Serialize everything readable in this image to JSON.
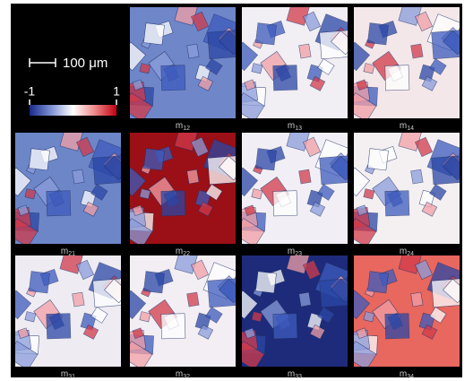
{
  "scale_bar": {
    "label": "100 μm"
  },
  "colorbar": {
    "lim": [
      -1,
      1
    ],
    "ticks": [
      -1,
      1
    ]
  },
  "panels": [
    {
      "symbol": "m",
      "index": "12",
      "color": "#6f86c9"
    },
    {
      "symbol": "m",
      "index": "13",
      "color": "#f1eef4"
    },
    {
      "symbol": "m",
      "index": "14",
      "color": "#f3e7e9"
    },
    {
      "symbol": "m",
      "index": "21",
      "color": "#6d86c8"
    },
    {
      "symbol": "m",
      "index": "22",
      "color": "#9a1016"
    },
    {
      "symbol": "m",
      "index": "23",
      "color": "#f1eff5"
    },
    {
      "symbol": "m",
      "index": "24",
      "color": "#f4f0f2"
    },
    {
      "symbol": "m",
      "index": "31",
      "color": "#eeebf3"
    },
    {
      "symbol": "m",
      "index": "32",
      "color": "#f2eef3"
    },
    {
      "symbol": "m",
      "index": "33",
      "color": "#1d2b7a"
    },
    {
      "symbol": "m",
      "index": "34",
      "color": "#e8675f"
    }
  ]
}
